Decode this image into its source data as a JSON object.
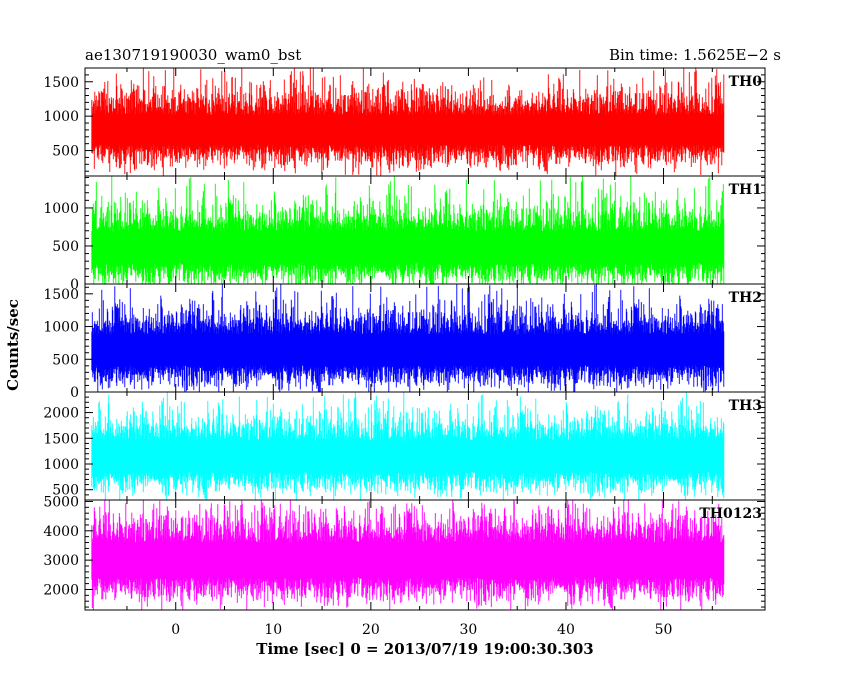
{
  "header": {
    "title": "ae130719190030_wam0_bst",
    "bin_time": "Bin time: 1.5625E−2 s"
  },
  "chart_data": {
    "type": "line",
    "style": "stacked-panels, shared x-axis, dense noise-like light curves, no grid, no legend",
    "xlabel": "Time [sec] 0 = 2013/07/19 19:00:30.303",
    "ylabel": "Counts/sec",
    "xlim": [
      -9.3,
      60.4
    ],
    "x_data_range": [
      -8.6,
      56.2
    ],
    "bin_time_s": 0.015625,
    "x_ticks": [
      0,
      10,
      20,
      30,
      40,
      50
    ],
    "x_tick_labels": [
      "0",
      "10",
      "20",
      "30",
      "40",
      "50"
    ],
    "panels": [
      {
        "name": "TH0",
        "color": "#ff0000",
        "ylim": [
          130,
          1700
        ],
        "y_ticks": [
          500,
          1000,
          1500
        ],
        "y_tick_labels": [
          "500",
          "1000",
          "1500"
        ],
        "mean": 800,
        "spread": 240,
        "peak": 1700,
        "floor": 170
      },
      {
        "name": "TH1",
        "color": "#00ff00",
        "ylim": [
          0,
          1420
        ],
        "y_ticks": [
          0,
          500,
          1000
        ],
        "y_tick_labels": [
          "0",
          "500",
          "1000"
        ],
        "mean": 480,
        "spread": 230,
        "peak": 1400,
        "floor": 40
      },
      {
        "name": "TH2",
        "color": "#0000ff",
        "ylim": [
          0,
          1650
        ],
        "y_ticks": [
          0,
          500,
          1000,
          1500
        ],
        "y_tick_labels": [
          "0",
          "500",
          "1000",
          "1500"
        ],
        "mean": 640,
        "spread": 260,
        "peak": 1650,
        "floor": 70
      },
      {
        "name": "TH3",
        "color": "#00ffff",
        "ylim": [
          300,
          2400
        ],
        "y_ticks": [
          500,
          1000,
          1500,
          2000
        ],
        "y_tick_labels": [
          "500",
          "1000",
          "1500",
          "2000"
        ],
        "mean": 1150,
        "spread": 330,
        "peak": 2350,
        "floor": 420
      },
      {
        "name": "TH0123",
        "color": "#ff00ff",
        "ylim": [
          1300,
          5050
        ],
        "y_ticks": [
          2000,
          3000,
          4000,
          5000
        ],
        "y_tick_labels": [
          "2000",
          "3000",
          "4000",
          "5000"
        ],
        "mean": 3000,
        "spread": 650,
        "peak": 5000,
        "floor": 1400
      }
    ]
  }
}
